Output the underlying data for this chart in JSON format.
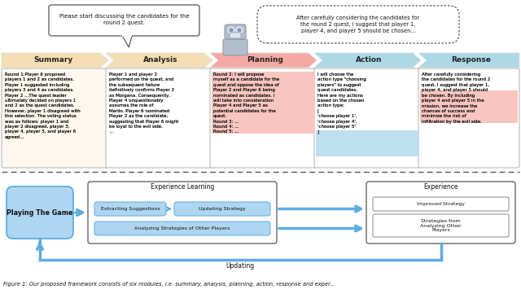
{
  "fig_width": 6.4,
  "fig_height": 3.61,
  "dpi": 100,
  "bg_color": "#ffffff",
  "speech_left": "Please start discussing the candidates for the\nround 2 quest.",
  "speech_right": "After carefully considering the candidates for\nthe round 2 quest, I suggest that player 1,\nplayer 4, and player 5 should be chosen...",
  "headers": [
    "Summary",
    "Analysis",
    "Planning",
    "Action",
    "Response"
  ],
  "header_colors": [
    "#F5DEB3",
    "#F5DEB3",
    "#F4A9A4",
    "#ADD8E6",
    "#ADD8E6"
  ],
  "texts": [
    "Round 1:Player 6 proposed\nplayers 1 and 2 as candidates.\nPlayer 1 suggested including\nplayers 3 and 4 as candidates.\nPlayer 2 ...The quest leader\nultimately decided on players 1\nand 2 as the quest candidates.\nHowever, player 1 disagreed with\nthis selection. The voting status\nwas as follows: player 1 and\nplayer 2 disagreed, player 3,\nplayer 4, player 5, and player 6\nagreed...",
    "Player 1 and player 2\nperformed on the quest, and\nthe subsequent failure\ndefinitively confirms Player 2\nas Morgana. Consequently,\nPlayer 4 unquestionably\nassumes the role of\nMerlin. Player 6 nominated\nPlayer 2 as the candidate,\nsuggesting that Player 6 might\nbe loyal to the evil side.\n...",
    "Round 2: I will propose\nmyself as a candidate for the\nquest and oppose the idea of\nPlayer 2 and Player 6 being\nnominated as candidates. I\nwill take into consideration\nPlayer 4 and Player 5 as\npotential candidates for the\nquest.\nRound 3: ...\nRound 4: ...\nRound 5: ...",
    "I will choose the\naction type \"choosing\nplayers\" to suggest\nquest candidates.\nHere are my actions\nbased on the chosen\naction type:\n[\n'choose player 1',\n'choose player 4',\n'choose player 5'\n]",
    "After carefully considering\nthe candidates for the round 2\nquest, I suggest that player 1,\nplayer 4, and player 5 should\nbe chosen. By including\nplayer 4 and player 5 in the\nmission, we increase the\nchances of success and\nminimize the risk of\ninfiltration by the evil side."
  ],
  "playing_game_text": "Playing The Game",
  "exp_learning_title": "Experience Learning",
  "exp_box1": "Extracting Suggestions",
  "exp_box2": "Updating Strategy",
  "exp_box3": "Analyzing Strategies of Other Players",
  "exp_title": "Experience",
  "exp_right1": "Improved Strategy",
  "exp_right2": "Strategies from\nAnalyzing Other\nPlayers",
  "updating_label": "Updating",
  "caption": "Figure 1: Our proposed framework consists of six modules, i.e. summary, analysis, planning, action, response and exper..."
}
